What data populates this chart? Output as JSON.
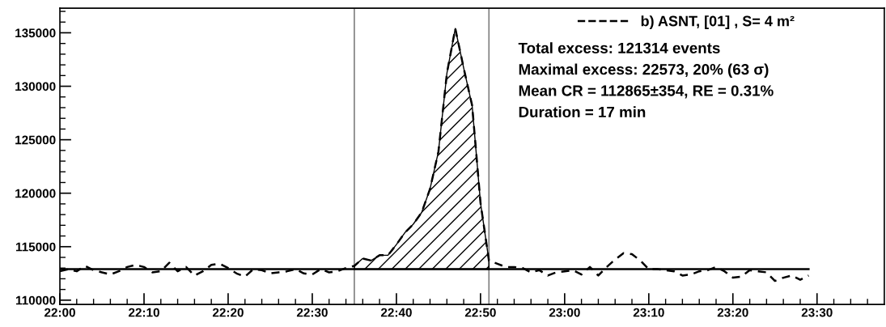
{
  "chart_data": {
    "type": "line",
    "x": [
      22,
      22.0167,
      22.0333,
      22.05,
      22.0667,
      22.0833,
      22.1,
      22.1167,
      22.1333,
      22.15,
      22.1667,
      22.1833,
      22.2,
      22.2167,
      22.2333,
      22.25,
      22.2667,
      22.2833,
      22.3,
      22.3167,
      22.3333,
      22.35,
      22.3667,
      22.3833,
      22.4,
      22.4167,
      22.4333,
      22.45,
      22.4667,
      22.4833,
      22.5,
      22.5167,
      22.5333,
      22.55,
      22.5667,
      22.5833,
      22.6,
      22.6167,
      22.6333,
      22.65,
      22.6667,
      22.6833,
      22.7,
      22.7167,
      22.7333,
      22.75,
      22.7667,
      22.7833,
      22.8,
      22.8167,
      22.8333,
      22.85,
      22.8667,
      22.8833,
      22.9,
      22.9167,
      22.9333,
      22.95,
      22.9667,
      22.9833,
      23,
      23.0167,
      23.0333,
      23.05,
      23.0667,
      23.0833,
      23.1,
      23.1167,
      23.1333,
      23.15,
      23.1667,
      23.1833,
      23.2,
      23.2167,
      23.2333,
      23.25,
      23.2667,
      23.2833,
      23.3,
      23.3167,
      23.3333,
      23.35,
      23.3667,
      23.3833,
      23.4,
      23.4167,
      23.4333,
      23.45,
      23.4667,
      23.4833
    ],
    "series": [
      {
        "name": "b) ASNT, [01] , S= 4 m²",
        "color": "#000000",
        "line_style": "dashed",
        "values": [
          112700,
          112900,
          112700,
          113200,
          112800,
          112600,
          112400,
          112700,
          113100,
          113300,
          113100,
          112600,
          112700,
          113500,
          112700,
          113100,
          112300,
          112700,
          113300,
          113400,
          113000,
          112500,
          112200,
          112900,
          112800,
          112500,
          112600,
          112700,
          112900,
          112500,
          112400,
          112900,
          112600,
          112700,
          113000,
          113200,
          113900,
          113700,
          114200,
          114200,
          115200,
          116300,
          117100,
          118200,
          120400,
          123900,
          131200,
          135400,
          131700,
          128200,
          119100,
          113700,
          113400,
          113100,
          113100,
          113000,
          112600,
          112800,
          112300,
          112600,
          112700,
          112800,
          112400,
          113100,
          112300,
          113100,
          113800,
          114400,
          114300,
          113700,
          112900,
          112900,
          112800,
          112700,
          112300,
          112400,
          112700,
          112800,
          113100,
          112700,
          112100,
          112200,
          112800,
          112700,
          112600,
          111800,
          112100,
          112300,
          111900,
          112300
        ]
      },
      {
        "type": "area",
        "color": "#000000",
        "x": [
          22.5833,
          22.6,
          22.6167,
          22.6333,
          22.65,
          22.6667,
          22.6833,
          22.7,
          22.7167,
          22.7333,
          22.75,
          22.7667,
          22.7833,
          22.8,
          22.8167,
          22.8333,
          22.85
        ],
        "values": [
          113200,
          113900,
          113700,
          114200,
          114200,
          115200,
          116300,
          117100,
          118200,
          120400,
          123900,
          131200,
          135400,
          131700,
          128200,
          119100,
          113700
        ]
      },
      {
        "color": "#000000",
        "line_style": "solid",
        "x": [
          22,
          23.4833
        ],
        "values": [
          112900,
          112900
        ]
      }
    ],
    "ref_lines": [
      {
        "axis": "x",
        "value": 22.5833,
        "color": "#808080"
      },
      {
        "axis": "x",
        "value": 22.85,
        "color": "#808080"
      }
    ],
    "annotations": [
      "Total excess: 121314 events",
      "Maximal excess: 22573, 20% (63 σ)",
      "Mean CR = 112865±354, RE = 0.31%",
      "Duration = 17 min"
    ],
    "xlim": [
      22,
      23.6333
    ],
    "ylim": [
      109600,
      137300
    ],
    "xticks": [
      {
        "value": 22,
        "label": "22:00"
      },
      {
        "value": 22.1667,
        "label": "22:10"
      },
      {
        "value": 22.3333,
        "label": "22:20"
      },
      {
        "value": 22.5,
        "label": "22:30"
      },
      {
        "value": 22.6667,
        "label": "22:40"
      },
      {
        "value": 22.8333,
        "label": "22:50"
      },
      {
        "value": 23,
        "label": "23:00"
      },
      {
        "value": 23.1667,
        "label": "23:10"
      },
      {
        "value": 23.3333,
        "label": "23:20"
      },
      {
        "value": 23.5,
        "label": "23:30"
      },
      {
        "value": 22.0333,
        "label": null
      },
      {
        "value": 22.0667,
        "label": null
      },
      {
        "value": 22.1,
        "label": null
      },
      {
        "value": 22.1333,
        "label": null
      },
      {
        "value": 22.2,
        "label": null
      },
      {
        "value": 22.2333,
        "label": null
      },
      {
        "value": 22.2667,
        "label": null
      },
      {
        "value": 22.3,
        "label": null
      },
      {
        "value": 22.3667,
        "label": null
      },
      {
        "value": 22.4,
        "label": null
      },
      {
        "value": 22.4333,
        "label": null
      },
      {
        "value": 22.4667,
        "label": null
      },
      {
        "value": 22.5333,
        "label": null
      },
      {
        "value": 22.5667,
        "label": null
      },
      {
        "value": 22.6,
        "label": null
      },
      {
        "value": 22.6333,
        "label": null
      },
      {
        "value": 22.7,
        "label": null
      },
      {
        "value": 22.7333,
        "label": null
      },
      {
        "value": 22.7667,
        "label": null
      },
      {
        "value": 22.8,
        "label": null
      },
      {
        "value": 22.8667,
        "label": null
      },
      {
        "value": 22.9,
        "label": null
      },
      {
        "value": 22.9333,
        "label": null
      },
      {
        "value": 22.9667,
        "label": null
      },
      {
        "value": 23.0333,
        "label": null
      },
      {
        "value": 23.0667,
        "label": null
      },
      {
        "value": 23.1,
        "label": null
      },
      {
        "value": 23.1333,
        "label": null
      },
      {
        "value": 23.2,
        "label": null
      },
      {
        "value": 23.2333,
        "label": null
      },
      {
        "value": 23.2667,
        "label": null
      },
      {
        "value": 23.3,
        "label": null
      },
      {
        "value": 23.3667,
        "label": null
      },
      {
        "value": 23.4,
        "label": null
      },
      {
        "value": 23.4333,
        "label": null
      },
      {
        "value": 23.4667,
        "label": null
      },
      {
        "value": 23.5333,
        "label": null
      },
      {
        "value": 23.5667,
        "label": null
      },
      {
        "value": 23.6,
        "label": null
      }
    ],
    "yticks": [
      110000,
      115000,
      120000,
      125000,
      130000,
      135000,
      {
        "value": 111000,
        "label": null
      },
      {
        "value": 112000,
        "label": null
      },
      {
        "value": 113000,
        "label": null
      },
      {
        "value": 114000,
        "label": null
      },
      {
        "value": 116000,
        "label": null
      },
      {
        "value": 117000,
        "label": null
      },
      {
        "value": 118000,
        "label": null
      },
      {
        "value": 119000,
        "label": null
      },
      {
        "value": 121000,
        "label": null
      },
      {
        "value": 122000,
        "label": null
      },
      {
        "value": 123000,
        "label": null
      },
      {
        "value": 124000,
        "label": null
      },
      {
        "value": 126000,
        "label": null
      },
      {
        "value": 127000,
        "label": null
      },
      {
        "value": 128000,
        "label": null
      },
      {
        "value": 129000,
        "label": null
      },
      {
        "value": 131000,
        "label": null
      },
      {
        "value": 132000,
        "label": null
      },
      {
        "value": 133000,
        "label": null
      },
      {
        "value": 134000,
        "label": null
      },
      {
        "value": 136000,
        "label": null
      },
      {
        "value": 137000,
        "label": null
      }
    ],
    "legend": "top right",
    "grid": false,
    "marker": "none"
  }
}
